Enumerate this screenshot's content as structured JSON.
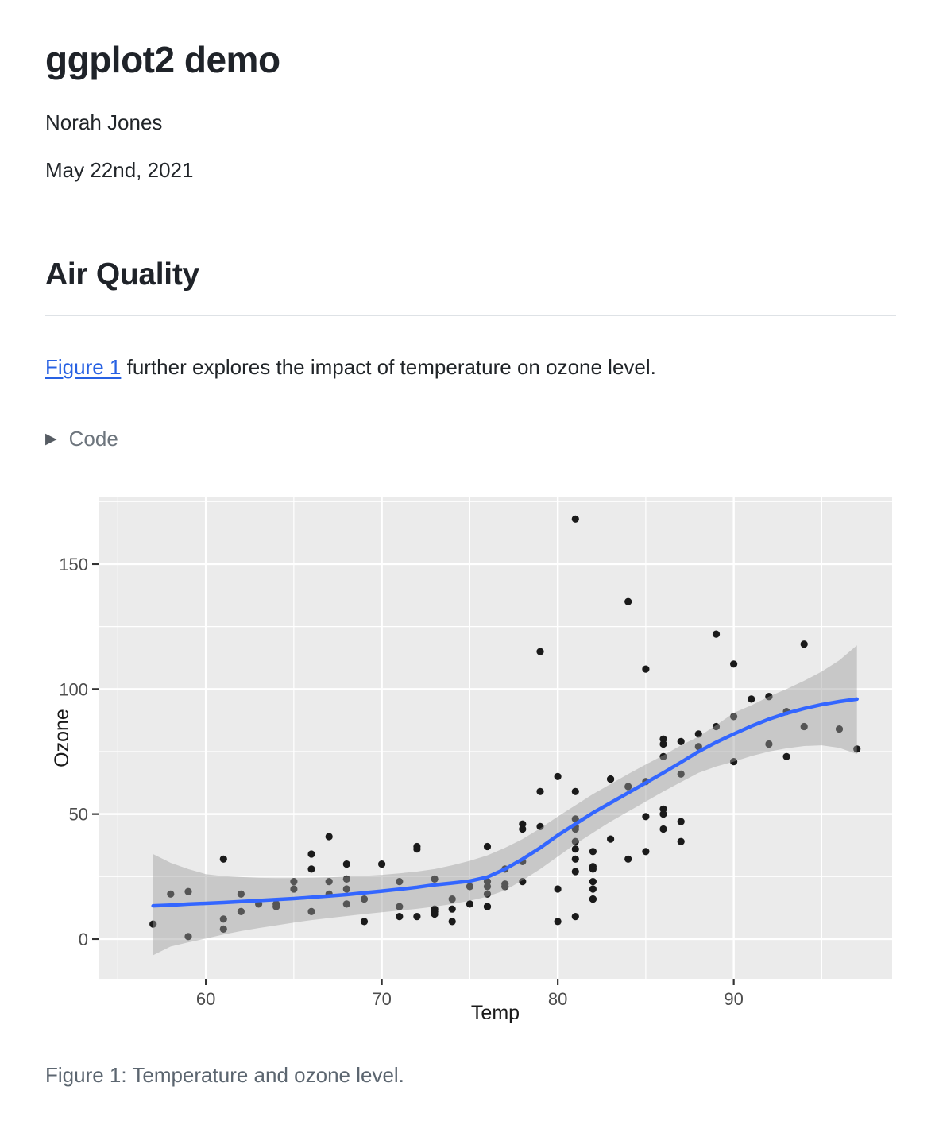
{
  "page": {
    "title": "ggplot2 demo",
    "author": "Norah Jones",
    "date": "May 22nd, 2021",
    "section_heading": "Air Quality",
    "paragraph": {
      "link_text": "Figure 1",
      "rest_text": " further explores the impact of temperature on ozone level."
    },
    "code_fold": {
      "icon": "▶",
      "label": "Code"
    },
    "caption": "Figure 1: Temperature and ozone level."
  },
  "colors": {
    "link": "#2761e3",
    "panel_bg": "#ebebeb",
    "grid": "#ffffff",
    "smooth_line": "#3366ff",
    "ribbon": "#9e9e9e",
    "point": "#1a1a1a",
    "tick_label": "#4d4d4d",
    "axis_title": "#1a1a1a",
    "tick_mark": "#333333"
  },
  "chart_data": {
    "type": "scatter",
    "xlabel": "Temp",
    "ylabel": "Ozone",
    "xlim": [
      53.9,
      99.0
    ],
    "ylim": [
      -15.9,
      177.0
    ],
    "x_ticks": [
      60,
      70,
      80,
      90
    ],
    "x_minor_ticks": [
      55,
      65,
      75,
      85,
      95
    ],
    "y_ticks": [
      0,
      50,
      100,
      150
    ],
    "y_minor_ticks": [
      25,
      75,
      125,
      175
    ],
    "grid": true,
    "legend": "none",
    "points": [
      [
        67,
        41
      ],
      [
        72,
        36
      ],
      [
        74,
        12
      ],
      [
        62,
        18
      ],
      [
        66,
        28
      ],
      [
        65,
        23
      ],
      [
        59,
        19
      ],
      [
        61,
        8
      ],
      [
        74,
        7
      ],
      [
        69,
        16
      ],
      [
        66,
        11
      ],
      [
        68,
        14
      ],
      [
        58,
        18
      ],
      [
        64,
        14
      ],
      [
        66,
        34
      ],
      [
        57,
        6
      ],
      [
        68,
        30
      ],
      [
        62,
        11
      ],
      [
        59,
        1
      ],
      [
        73,
        11
      ],
      [
        61,
        4
      ],
      [
        61,
        32
      ],
      [
        67,
        23
      ],
      [
        81,
        45
      ],
      [
        79,
        115
      ],
      [
        76,
        37
      ],
      [
        82,
        29
      ],
      [
        90,
        71
      ],
      [
        87,
        39
      ],
      [
        82,
        23
      ],
      [
        77,
        21
      ],
      [
        72,
        37
      ],
      [
        65,
        20
      ],
      [
        73,
        12
      ],
      [
        76,
        13
      ],
      [
        84,
        135
      ],
      [
        85,
        49
      ],
      [
        81,
        32
      ],
      [
        83,
        64
      ],
      [
        83,
        40
      ],
      [
        88,
        77
      ],
      [
        92,
        97
      ],
      [
        92,
        97
      ],
      [
        89,
        85
      ],
      [
        73,
        10
      ],
      [
        81,
        27
      ],
      [
        80,
        7
      ],
      [
        81,
        48
      ],
      [
        82,
        35
      ],
      [
        84,
        61
      ],
      [
        87,
        79
      ],
      [
        85,
        63
      ],
      [
        74,
        16
      ],
      [
        86,
        80
      ],
      [
        85,
        108
      ],
      [
        82,
        20
      ],
      [
        86,
        52
      ],
      [
        88,
        82
      ],
      [
        86,
        50
      ],
      [
        83,
        64
      ],
      [
        81,
        59
      ],
      [
        81,
        39
      ],
      [
        81,
        9
      ],
      [
        82,
        16
      ],
      [
        86,
        78
      ],
      [
        85,
        35
      ],
      [
        87,
        66
      ],
      [
        89,
        122
      ],
      [
        90,
        89
      ],
      [
        90,
        110
      ],
      [
        86,
        44
      ],
      [
        82,
        28
      ],
      [
        80,
        65
      ],
      [
        77,
        22
      ],
      [
        79,
        59
      ],
      [
        76,
        23
      ],
      [
        78,
        31
      ],
      [
        78,
        44
      ],
      [
        77,
        21
      ],
      [
        72,
        9
      ],
      [
        79,
        45
      ],
      [
        81,
        168
      ],
      [
        86,
        73
      ],
      [
        97,
        76
      ],
      [
        94,
        118
      ],
      [
        96,
        84
      ],
      [
        94,
        85
      ],
      [
        91,
        96
      ],
      [
        92,
        78
      ],
      [
        93,
        73
      ],
      [
        93,
        91
      ],
      [
        87,
        47
      ],
      [
        84,
        32
      ],
      [
        80,
        20
      ],
      [
        78,
        23
      ],
      [
        75,
        21
      ],
      [
        73,
        24
      ],
      [
        81,
        44
      ],
      [
        76,
        21
      ],
      [
        77,
        28
      ],
      [
        71,
        9
      ],
      [
        71,
        13
      ],
      [
        78,
        46
      ],
      [
        67,
        18
      ],
      [
        76,
        13
      ],
      [
        68,
        24
      ],
      [
        82,
        16
      ],
      [
        64,
        13
      ],
      [
        71,
        23
      ],
      [
        81,
        36
      ],
      [
        69,
        7
      ],
      [
        63,
        14
      ],
      [
        70,
        30
      ],
      [
        75,
        14
      ],
      [
        76,
        18
      ],
      [
        68,
        20
      ]
    ],
    "smooth": {
      "x": [
        57,
        58,
        59,
        60,
        61,
        62,
        63,
        64,
        65,
        66,
        67,
        68,
        69,
        70,
        71,
        72,
        73,
        74,
        75,
        76,
        77,
        78,
        79,
        80,
        81,
        82,
        83,
        84,
        85,
        86,
        87,
        88,
        89,
        90,
        91,
        92,
        93,
        94,
        95,
        96,
        97
      ],
      "y": [
        13.3,
        13.6,
        14.0,
        14.3,
        14.6,
        15.0,
        15.4,
        15.8,
        16.2,
        16.7,
        17.2,
        17.8,
        18.5,
        19.2,
        19.9,
        20.7,
        21.7,
        22.4,
        23.2,
        24.8,
        28.0,
        32.0,
        36.5,
        41.5,
        46.0,
        50.5,
        54.5,
        58.5,
        62.5,
        66.5,
        70.7,
        75.0,
        78.7,
        82.0,
        85.2,
        88.0,
        90.3,
        92.2,
        93.8,
        95.0,
        96.0
      ],
      "upper": [
        34.0,
        30.5,
        28.0,
        26.0,
        25.2,
        24.8,
        24.5,
        24.4,
        24.4,
        24.5,
        24.7,
        25.0,
        25.3,
        25.7,
        26.3,
        27.0,
        28.0,
        29.5,
        31.3,
        33.5,
        36.5,
        40.0,
        44.3,
        49.0,
        53.5,
        58.0,
        62.0,
        66.0,
        69.8,
        73.5,
        77.5,
        81.0,
        85.5,
        90.5,
        93.5,
        97.0,
        100.0,
        103.3,
        107.0,
        111.5,
        117.5
      ],
      "lower": [
        -6.5,
        -3.0,
        -1.3,
        0.2,
        1.8,
        3.2,
        4.4,
        5.5,
        6.6,
        7.6,
        8.4,
        9.2,
        10.0,
        10.7,
        11.4,
        12.1,
        13.0,
        14.0,
        15.3,
        17.0,
        19.5,
        23.5,
        28.0,
        33.0,
        38.0,
        42.5,
        47.0,
        51.0,
        55.0,
        59.0,
        62.8,
        66.5,
        69.0,
        71.0,
        73.2,
        75.0,
        76.3,
        77.2,
        77.5,
        76.5,
        74.0
      ]
    }
  }
}
